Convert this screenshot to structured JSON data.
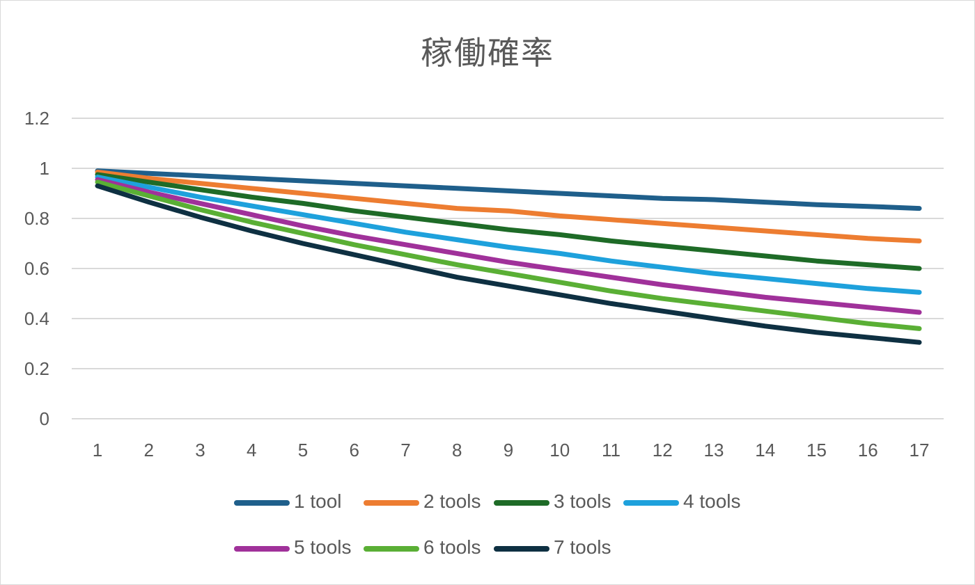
{
  "chart_data": {
    "type": "line",
    "title": "稼働確率",
    "xlabel": "",
    "ylabel": "",
    "categories": [
      "1",
      "2",
      "3",
      "4",
      "5",
      "6",
      "7",
      "8",
      "9",
      "10",
      "11",
      "12",
      "13",
      "14",
      "15",
      "16",
      "17"
    ],
    "ylim": [
      0,
      1.2
    ],
    "yticks": [
      "0",
      "0.2",
      "0.4",
      "0.6",
      "0.8",
      "1",
      "1.2"
    ],
    "grid": true,
    "legend_position": "bottom",
    "series": [
      {
        "name": "1 tool",
        "color": "#1f5f8b",
        "values": [
          0.99,
          0.98,
          0.97,
          0.96,
          0.95,
          0.94,
          0.93,
          0.92,
          0.91,
          0.9,
          0.89,
          0.88,
          0.875,
          0.865,
          0.855,
          0.848,
          0.84
        ]
      },
      {
        "name": "2 tools",
        "color": "#ed7d31",
        "values": [
          0.985,
          0.96,
          0.94,
          0.92,
          0.9,
          0.88,
          0.86,
          0.84,
          0.83,
          0.81,
          0.795,
          0.78,
          0.765,
          0.75,
          0.735,
          0.72,
          0.71
        ]
      },
      {
        "name": "3 tools",
        "color": "#1e6b27",
        "values": [
          0.975,
          0.945,
          0.915,
          0.885,
          0.86,
          0.83,
          0.805,
          0.78,
          0.755,
          0.735,
          0.71,
          0.69,
          0.67,
          0.65,
          0.63,
          0.615,
          0.6
        ]
      },
      {
        "name": "4 tools",
        "color": "#1ea1dc",
        "values": [
          0.965,
          0.925,
          0.885,
          0.85,
          0.815,
          0.78,
          0.745,
          0.715,
          0.685,
          0.66,
          0.63,
          0.605,
          0.58,
          0.56,
          0.54,
          0.52,
          0.505
        ]
      },
      {
        "name": "5 tools",
        "color": "#a0319a",
        "values": [
          0.955,
          0.905,
          0.86,
          0.815,
          0.77,
          0.73,
          0.695,
          0.66,
          0.625,
          0.595,
          0.565,
          0.535,
          0.51,
          0.485,
          0.465,
          0.445,
          0.425
        ]
      },
      {
        "name": "6 tools",
        "color": "#5aaf35",
        "values": [
          0.945,
          0.89,
          0.835,
          0.785,
          0.74,
          0.695,
          0.655,
          0.615,
          0.58,
          0.545,
          0.51,
          0.48,
          0.455,
          0.43,
          0.405,
          0.38,
          0.36
        ]
      },
      {
        "name": "7 tools",
        "color": "#0e3042",
        "values": [
          0.93,
          0.865,
          0.805,
          0.75,
          0.7,
          0.655,
          0.61,
          0.565,
          0.53,
          0.495,
          0.46,
          0.43,
          0.4,
          0.37,
          0.345,
          0.325,
          0.305
        ]
      }
    ]
  }
}
